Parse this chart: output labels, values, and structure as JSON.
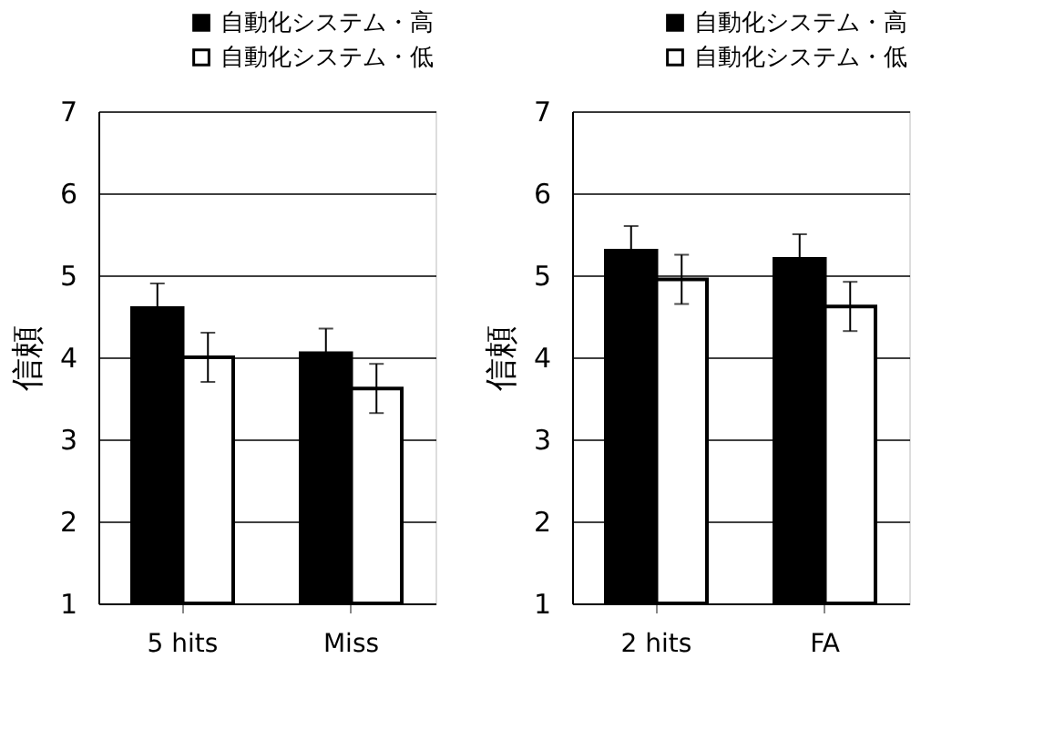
{
  "chart_data": [
    {
      "type": "bar",
      "ylabel": "信頼",
      "categories": [
        "5 hits",
        "Miss"
      ],
      "ylim": [
        1,
        7
      ],
      "yticks": [
        1,
        2,
        3,
        4,
        5,
        6,
        7
      ],
      "grid": "y",
      "legend": "top right",
      "series": [
        {
          "name": "自動化システム・高",
          "color": "#000000",
          "values": [
            4.6,
            4.05
          ],
          "errors": [
            0.3,
            0.3
          ]
        },
        {
          "name": "自動化システム・低",
          "color": "#ffffff",
          "values": [
            4.0,
            3.62
          ],
          "errors": [
            0.3,
            0.3
          ]
        }
      ]
    },
    {
      "type": "bar",
      "ylabel": "信頼",
      "categories": [
        "2 hits",
        "FA"
      ],
      "ylim": [
        1,
        7
      ],
      "yticks": [
        1,
        2,
        3,
        4,
        5,
        6,
        7
      ],
      "grid": "y",
      "legend": "top right",
      "series": [
        {
          "name": "自動化システム・高",
          "color": "#000000",
          "values": [
            5.3,
            5.2
          ],
          "errors": [
            0.3,
            0.3
          ]
        },
        {
          "name": "自動化システム・低",
          "color": "#ffffff",
          "values": [
            4.95,
            4.62
          ],
          "errors": [
            0.3,
            0.3
          ]
        }
      ]
    }
  ]
}
